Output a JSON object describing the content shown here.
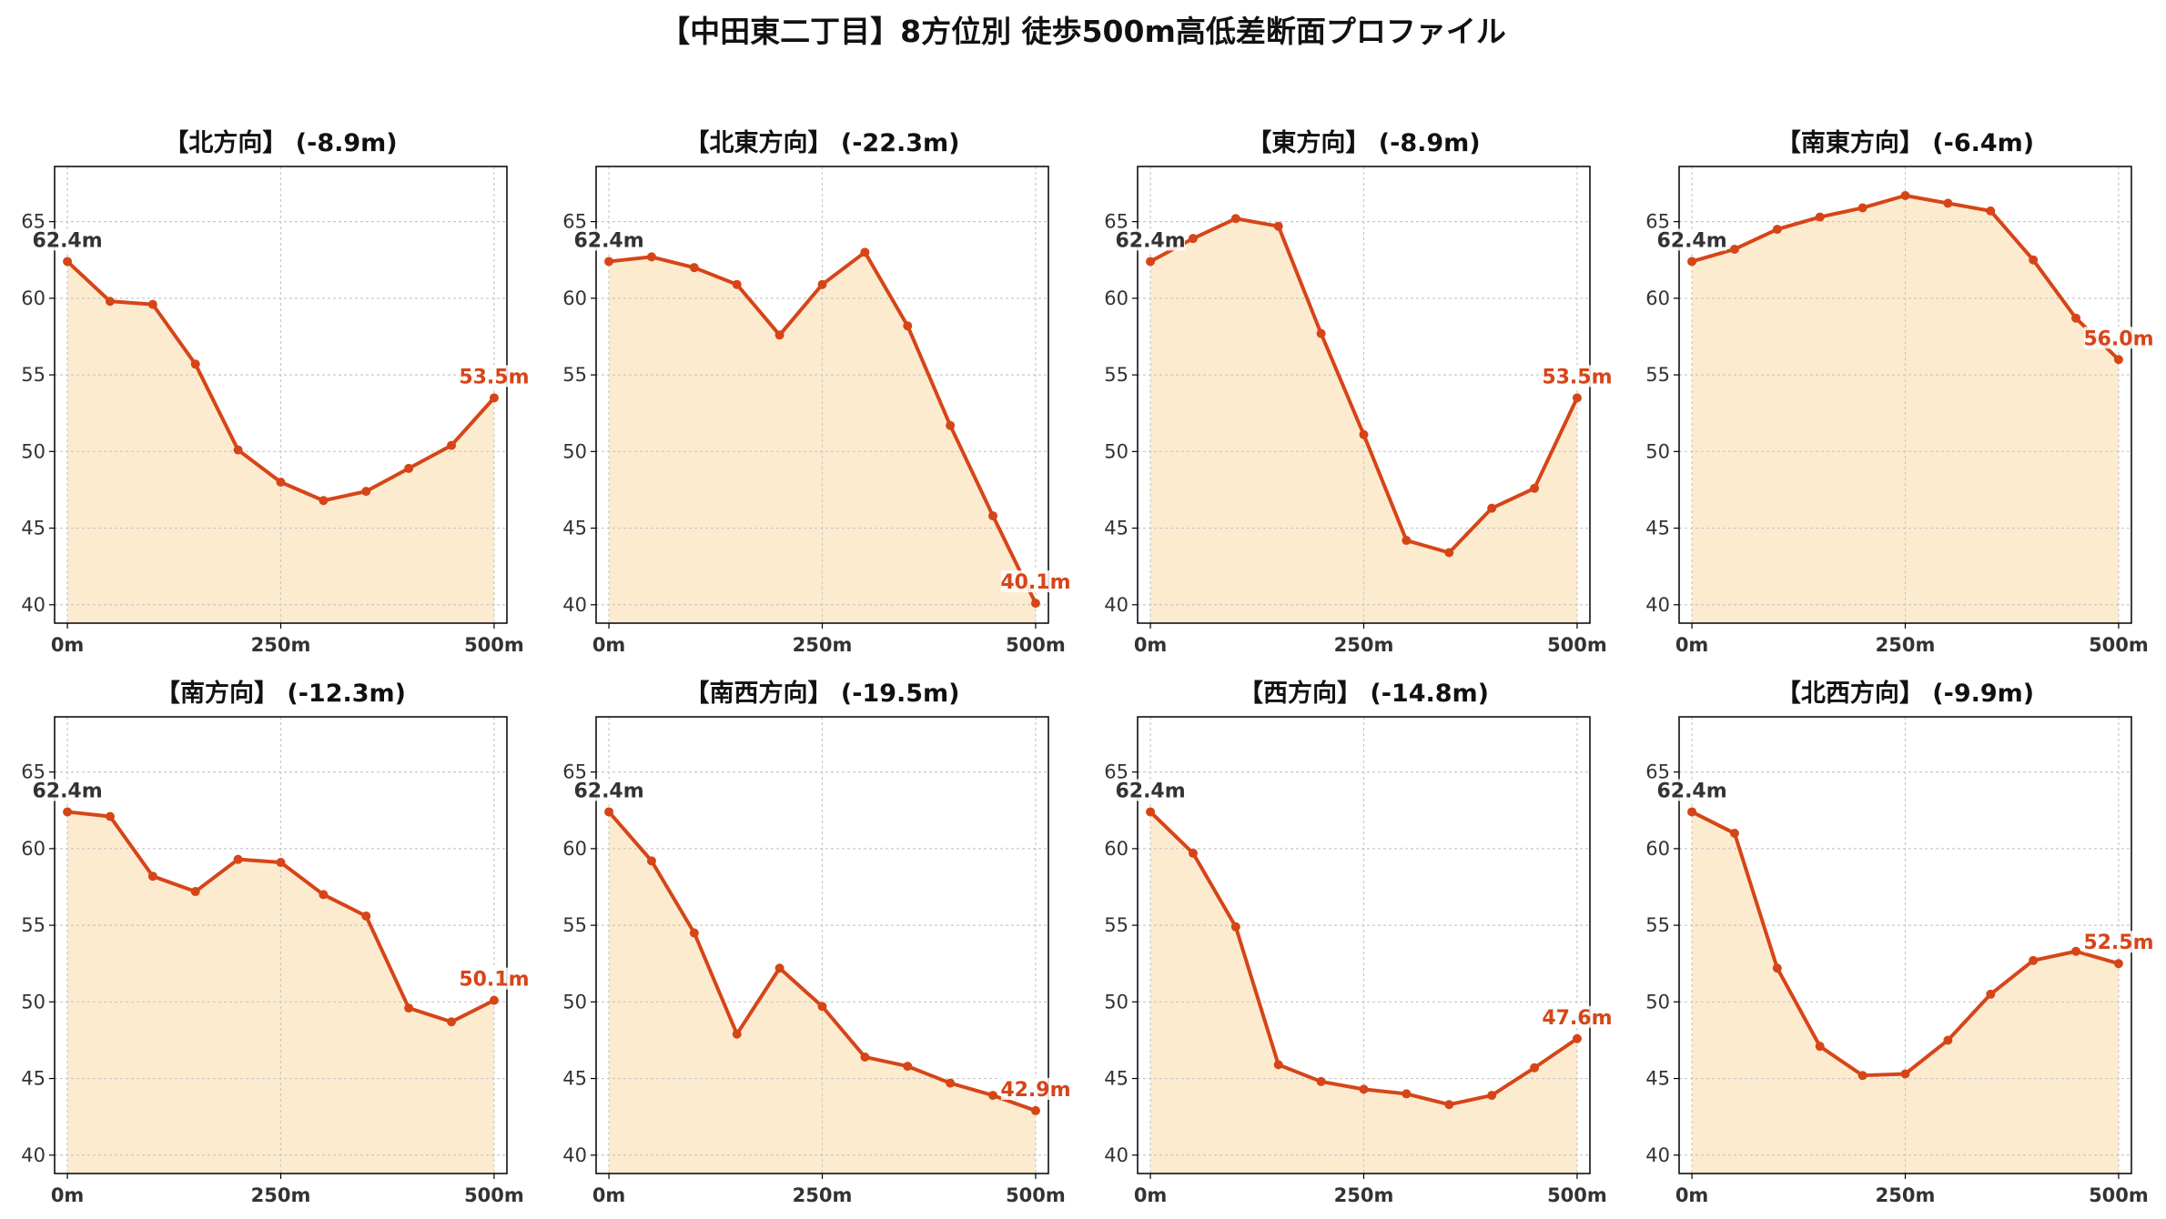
{
  "title": "【中田東二丁目】8方位別 徒歩500m高低差断面プロファイル",
  "colors": {
    "line": "#d64518",
    "fill": "#fdebd0",
    "grid": "#c8c8c8",
    "axis": "#000000"
  },
  "chart_data": [
    {
      "type": "area",
      "title": "【北方向】 (-8.9m)",
      "x": [
        0,
        50,
        100,
        150,
        200,
        250,
        300,
        350,
        400,
        450,
        500
      ],
      "values": [
        62.4,
        59.8,
        59.6,
        55.7,
        50.1,
        48.0,
        46.8,
        47.4,
        48.9,
        50.4,
        53.5
      ],
      "start_label": "62.4m",
      "end_label": "53.5m",
      "xticks": [
        "0m",
        "250m",
        "500m"
      ],
      "yticks": [
        40,
        45,
        50,
        55,
        60,
        65
      ],
      "ylim": [
        38.8,
        68.6
      ],
      "xlim": [
        -15,
        515
      ],
      "grid": true
    },
    {
      "type": "area",
      "title": "【北東方向】 (-22.3m)",
      "x": [
        0,
        50,
        100,
        150,
        200,
        250,
        300,
        350,
        400,
        450,
        500
      ],
      "values": [
        62.4,
        62.7,
        62.0,
        60.9,
        57.6,
        60.9,
        63.0,
        58.2,
        51.7,
        45.8,
        40.1
      ],
      "start_label": "62.4m",
      "end_label": "40.1m",
      "xticks": [
        "0m",
        "250m",
        "500m"
      ],
      "yticks": [
        40,
        45,
        50,
        55,
        60,
        65
      ],
      "ylim": [
        38.8,
        68.6
      ],
      "xlim": [
        -15,
        515
      ],
      "grid": true
    },
    {
      "type": "area",
      "title": "【東方向】 (-8.9m)",
      "x": [
        0,
        50,
        100,
        150,
        200,
        250,
        300,
        350,
        400,
        450,
        500
      ],
      "values": [
        62.4,
        63.9,
        65.2,
        64.7,
        57.7,
        51.1,
        44.2,
        43.4,
        46.3,
        47.6,
        53.5
      ],
      "start_label": "62.4m",
      "end_label": "53.5m",
      "xticks": [
        "0m",
        "250m",
        "500m"
      ],
      "yticks": [
        40,
        45,
        50,
        55,
        60,
        65
      ],
      "ylim": [
        38.8,
        68.6
      ],
      "xlim": [
        -15,
        515
      ],
      "grid": true
    },
    {
      "type": "area",
      "title": "【南東方向】 (-6.4m)",
      "x": [
        0,
        50,
        100,
        150,
        200,
        250,
        300,
        350,
        400,
        450,
        500
      ],
      "values": [
        62.4,
        63.2,
        64.5,
        65.3,
        65.9,
        66.7,
        66.2,
        65.7,
        62.5,
        58.7,
        56.0
      ],
      "start_label": "62.4m",
      "end_label": "56.0m",
      "xticks": [
        "0m",
        "250m",
        "500m"
      ],
      "yticks": [
        40,
        45,
        50,
        55,
        60,
        65
      ],
      "ylim": [
        38.8,
        68.6
      ],
      "xlim": [
        -15,
        515
      ],
      "grid": true
    },
    {
      "type": "area",
      "title": "【南方向】 (-12.3m)",
      "x": [
        0,
        50,
        100,
        150,
        200,
        250,
        300,
        350,
        400,
        450,
        500
      ],
      "values": [
        62.4,
        62.1,
        58.2,
        57.2,
        59.3,
        59.1,
        57.0,
        55.6,
        49.6,
        48.7,
        50.1
      ],
      "start_label": "62.4m",
      "end_label": "50.1m",
      "xticks": [
        "0m",
        "250m",
        "500m"
      ],
      "yticks": [
        40,
        45,
        50,
        55,
        60,
        65
      ],
      "ylim": [
        38.8,
        68.6
      ],
      "xlim": [
        -15,
        515
      ],
      "grid": true
    },
    {
      "type": "area",
      "title": "【南西方向】 (-19.5m)",
      "x": [
        0,
        50,
        100,
        150,
        200,
        250,
        300,
        350,
        400,
        450,
        500
      ],
      "values": [
        62.4,
        59.2,
        54.5,
        47.9,
        52.2,
        49.7,
        46.4,
        45.8,
        44.7,
        43.9,
        42.9
      ],
      "start_label": "62.4m",
      "end_label": "42.9m",
      "xticks": [
        "0m",
        "250m",
        "500m"
      ],
      "yticks": [
        40,
        45,
        50,
        55,
        60,
        65
      ],
      "ylim": [
        38.8,
        68.6
      ],
      "xlim": [
        -15,
        515
      ],
      "grid": true
    },
    {
      "type": "area",
      "title": "【西方向】 (-14.8m)",
      "x": [
        0,
        50,
        100,
        150,
        200,
        250,
        300,
        350,
        400,
        450,
        500
      ],
      "values": [
        62.4,
        59.7,
        54.9,
        45.9,
        44.8,
        44.3,
        44.0,
        43.3,
        43.9,
        45.7,
        47.6
      ],
      "start_label": "62.4m",
      "end_label": "47.6m",
      "xticks": [
        "0m",
        "250m",
        "500m"
      ],
      "yticks": [
        40,
        45,
        50,
        55,
        60,
        65
      ],
      "ylim": [
        38.8,
        68.6
      ],
      "xlim": [
        -15,
        515
      ],
      "grid": true
    },
    {
      "type": "area",
      "title": "【北西方向】 (-9.9m)",
      "x": [
        0,
        50,
        100,
        150,
        200,
        250,
        300,
        350,
        400,
        450,
        500
      ],
      "values": [
        62.4,
        61.0,
        52.2,
        47.1,
        45.2,
        45.3,
        47.5,
        50.5,
        52.7,
        53.3,
        52.5
      ],
      "start_label": "62.4m",
      "end_label": "52.5m",
      "xticks": [
        "0m",
        "250m",
        "500m"
      ],
      "yticks": [
        40,
        45,
        50,
        55,
        60,
        65
      ],
      "ylim": [
        38.8,
        68.6
      ],
      "xlim": [
        -15,
        515
      ],
      "grid": true
    }
  ]
}
